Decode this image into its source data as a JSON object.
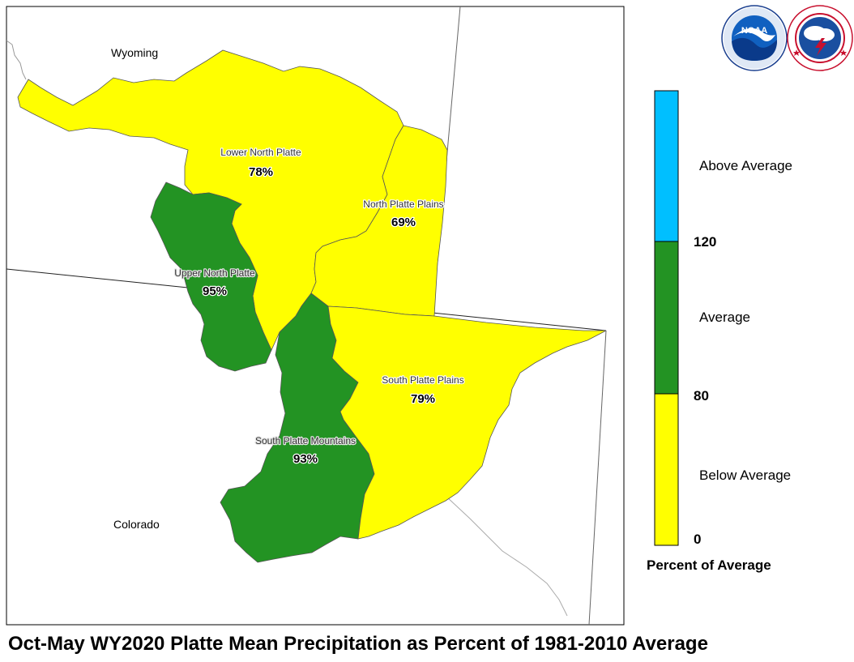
{
  "title": "Oct-May WY2020 Platte Mean Precipitation as Percent of 1981-2010 Average",
  "states": {
    "wyoming": "Wyoming",
    "colorado": "Colorado"
  },
  "basins": {
    "lower_north_platte": {
      "name": "Lower North Platte",
      "percent": 78,
      "percent_label": "78%",
      "category": "Below Average"
    },
    "north_platte_plains": {
      "name": "North Platte Plains",
      "percent": 69,
      "percent_label": "69%",
      "category": "Below Average"
    },
    "upper_north_platte": {
      "name": "Upper North Platte",
      "percent": 95,
      "percent_label": "95%",
      "category": "Average"
    },
    "south_platte_plains": {
      "name": "South Platte Plains",
      "percent": 79,
      "percent_label": "79%",
      "category": "Below Average"
    },
    "south_platte_mountains": {
      "name": "South Platte Mountains",
      "percent": 93,
      "percent_label": "93%",
      "category": "Average"
    }
  },
  "legend": {
    "title": "Percent of Average",
    "classes": [
      {
        "label": "Above Average",
        "color": "#00bfff"
      },
      {
        "label": "Average",
        "color": "#239323"
      },
      {
        "label": "Below Average",
        "color": "#ffff00"
      }
    ],
    "ticks": [
      "120",
      "80",
      "0"
    ]
  },
  "logos": {
    "noaa": {
      "text": "NOAA",
      "name": "noaa-logo",
      "ring_text": "NATIONAL OCEANIC AND ATMOSPHERIC ADMINISTRATION"
    },
    "nws": {
      "name": "nws-logo",
      "ring_text": "NATIONAL WEATHER SERVICE"
    }
  },
  "colors": {
    "below_average": "#ffff00",
    "average": "#239323",
    "above_average": "#00bfff",
    "boundary": "#555555"
  }
}
